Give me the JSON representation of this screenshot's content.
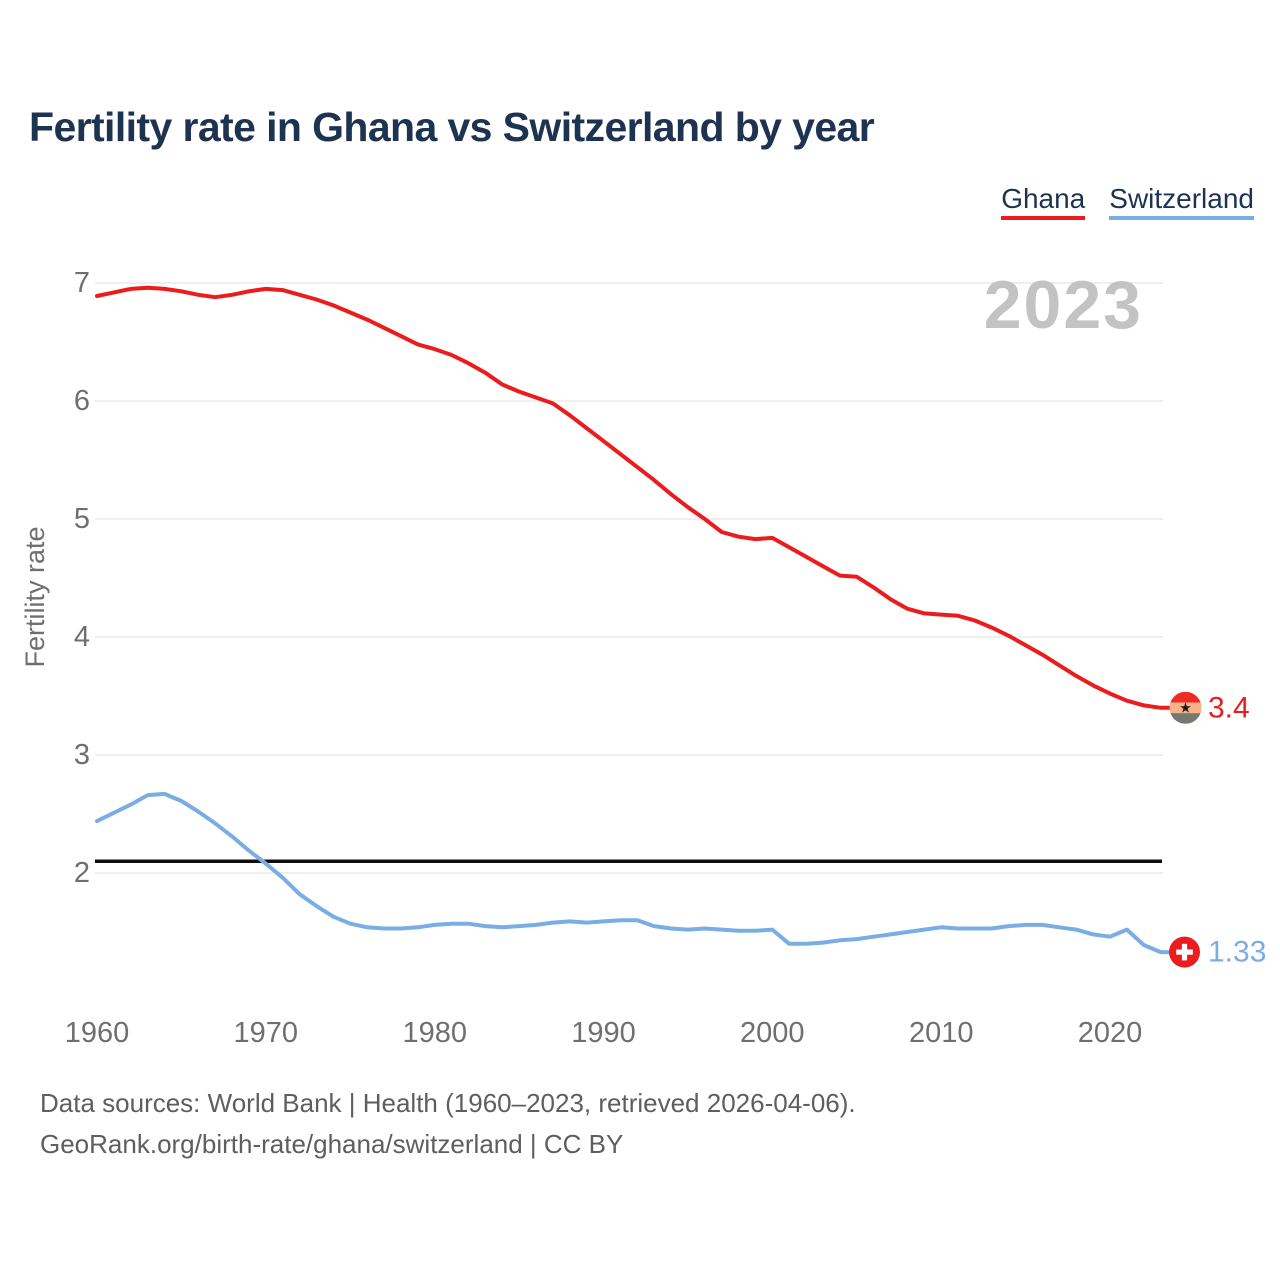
{
  "page": {
    "title": "Fertility rate in Ghana vs Switzerland by year",
    "watermark": "2023",
    "source_line1": "Data sources: World Bank | Health (1960–2023, retrieved 2026-04-06).",
    "source_line2": "GeoRank.org/birth-rate/ghana/switzerland | CC BY"
  },
  "legend": {
    "items": [
      {
        "label": "Ghana",
        "color": "#ec1c1e"
      },
      {
        "label": "Switzerland",
        "color": "#7aade2"
      }
    ]
  },
  "flags": {
    "ghana": {
      "red": "#ee2b24",
      "gold": "#f7b289",
      "green": "#757a70",
      "star": "#1a1a1a"
    },
    "switzerland": {
      "red": "#ec1c1e",
      "cross": "#ffffff"
    }
  },
  "chart_data": {
    "type": "line",
    "title": "Fertility rate in Ghana vs Switzerland by year",
    "xlabel": "",
    "ylabel": "Fertility rate",
    "x_ticks": [
      1960,
      1970,
      1980,
      1990,
      2000,
      2010,
      2020
    ],
    "y_ticks": [
      2,
      3,
      4,
      5,
      6,
      7
    ],
    "xlim": [
      1960,
      2023
    ],
    "ylim": [
      1.1,
      7.15
    ],
    "grid": "horizontal-only",
    "legend_position": "top-right",
    "watermark": "2023",
    "reference_line": {
      "value": 2.1,
      "color": "#0c0c0c",
      "name": "replacement-level-fertility"
    },
    "years": [
      1960,
      1961,
      1962,
      1963,
      1964,
      1965,
      1966,
      1967,
      1968,
      1969,
      1970,
      1971,
      1972,
      1973,
      1974,
      1975,
      1976,
      1977,
      1978,
      1979,
      1980,
      1981,
      1982,
      1983,
      1984,
      1985,
      1986,
      1987,
      1988,
      1989,
      1990,
      1991,
      1992,
      1993,
      1994,
      1995,
      1996,
      1997,
      1998,
      1999,
      2000,
      2001,
      2002,
      2003,
      2004,
      2005,
      2006,
      2007,
      2008,
      2009,
      2010,
      2011,
      2012,
      2013,
      2014,
      2015,
      2016,
      2017,
      2018,
      2019,
      2020,
      2021,
      2022,
      2023
    ],
    "series": [
      {
        "name": "Ghana",
        "color": "#ec1c1e",
        "end_label": "3.4",
        "end_marker": "ghana-flag",
        "values": [
          6.89,
          6.92,
          6.95,
          6.96,
          6.95,
          6.93,
          6.9,
          6.88,
          6.9,
          6.93,
          6.95,
          6.94,
          6.9,
          6.86,
          6.81,
          6.75,
          6.69,
          6.62,
          6.55,
          6.48,
          6.44,
          6.39,
          6.32,
          6.24,
          6.14,
          6.08,
          6.03,
          5.98,
          5.88,
          5.77,
          5.66,
          5.55,
          5.44,
          5.33,
          5.21,
          5.1,
          5.0,
          4.89,
          4.85,
          4.83,
          4.84,
          4.76,
          4.68,
          4.6,
          4.52,
          4.51,
          4.42,
          4.32,
          4.24,
          4.2,
          4.19,
          4.18,
          4.14,
          4.08,
          4.01,
          3.93,
          3.85,
          3.76,
          3.67,
          3.59,
          3.52,
          3.46,
          3.42,
          3.4
        ]
      },
      {
        "name": "Switzerland",
        "color": "#7aade2",
        "end_label": "1.33",
        "end_marker": "switzerland-flag",
        "values": [
          2.44,
          2.51,
          2.58,
          2.66,
          2.67,
          2.61,
          2.52,
          2.42,
          2.31,
          2.19,
          2.08,
          1.96,
          1.82,
          1.72,
          1.63,
          1.57,
          1.54,
          1.53,
          1.53,
          1.54,
          1.56,
          1.57,
          1.57,
          1.55,
          1.54,
          1.55,
          1.56,
          1.58,
          1.59,
          1.58,
          1.59,
          1.6,
          1.6,
          1.55,
          1.53,
          1.52,
          1.53,
          1.52,
          1.51,
          1.51,
          1.52,
          1.4,
          1.4,
          1.41,
          1.43,
          1.44,
          1.46,
          1.48,
          1.5,
          1.52,
          1.54,
          1.53,
          1.53,
          1.53,
          1.55,
          1.56,
          1.56,
          1.54,
          1.52,
          1.48,
          1.46,
          1.52,
          1.39,
          1.33
        ]
      }
    ]
  }
}
